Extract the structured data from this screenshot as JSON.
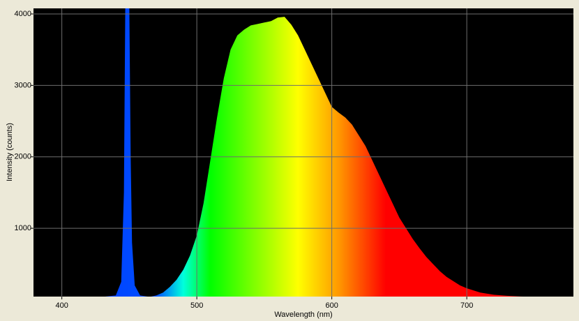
{
  "chart_data": {
    "type": "area",
    "x_label": "Wavelength (nm)",
    "y_label": "Intensity (counts)",
    "x": [
      379,
      400,
      430,
      440,
      444,
      446,
      447,
      448,
      450,
      451,
      452,
      454,
      458,
      465,
      470,
      475,
      480,
      485,
      490,
      495,
      500,
      505,
      510,
      515,
      520,
      525,
      530,
      535,
      540,
      545,
      550,
      555,
      560,
      565,
      570,
      575,
      580,
      585,
      590,
      595,
      600,
      605,
      610,
      615,
      620,
      625,
      630,
      635,
      640,
      645,
      650,
      655,
      660,
      665,
      670,
      675,
      680,
      685,
      690,
      695,
      700,
      710,
      720,
      730,
      740,
      750,
      779
    ],
    "values": [
      40,
      40,
      40,
      60,
      250,
      1500,
      4100,
      4100,
      4100,
      2000,
      800,
      200,
      60,
      40,
      60,
      100,
      180,
      280,
      420,
      620,
      900,
      1350,
      1950,
      2550,
      3100,
      3500,
      3700,
      3780,
      3840,
      3860,
      3880,
      3900,
      3950,
      3960,
      3850,
      3700,
      3500,
      3300,
      3100,
      2900,
      2700,
      2620,
      2550,
      2450,
      2300,
      2150,
      1950,
      1750,
      1550,
      1350,
      1150,
      1000,
      850,
      720,
      600,
      500,
      400,
      320,
      260,
      200,
      160,
      100,
      70,
      55,
      45,
      40,
      40
    ],
    "colorscale": [
      {
        "x": 379,
        "color": "#0030ff"
      },
      {
        "x": 470,
        "color": "#0050ff"
      },
      {
        "x": 490,
        "color": "#00ffdd"
      },
      {
        "x": 510,
        "color": "#00ff00"
      },
      {
        "x": 575,
        "color": "#ffff00"
      },
      {
        "x": 605,
        "color": "#ff9900"
      },
      {
        "x": 640,
        "color": "#ff0000"
      },
      {
        "x": 779,
        "color": "#ff0000"
      }
    ],
    "background": "#000000",
    "xlim": [
      379,
      779
    ],
    "ylim": [
      44,
      4078
    ],
    "xticks": [
      400,
      500,
      600,
      700
    ],
    "yticks": [
      1000,
      2000,
      3000,
      4000
    ],
    "grid": true
  }
}
